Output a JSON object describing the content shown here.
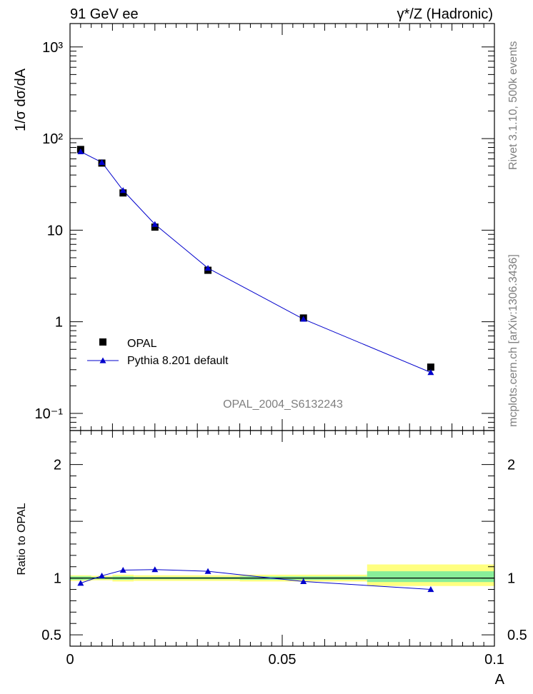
{
  "header": {
    "left": "91 GeV ee",
    "right": "γ*/Z (Hadronic)"
  },
  "side_text": {
    "rivet": "Rivet 3.1.10,  500k events",
    "mcplots": "mcplots.cern.ch [arXiv:1306.3436]"
  },
  "analysis_label": "OPAL_2004_S6132243",
  "colors": {
    "data": "#000000",
    "mc": "#0000cc",
    "band_outer": "#ffff80",
    "band_inner": "#88ee99"
  },
  "chart_data": [
    {
      "type": "scatter",
      "panel": "main",
      "ylabel": "1/σ dσ/dA",
      "xlabel": "A",
      "yscale": "log",
      "xlim": [
        0,
        0.1
      ],
      "ylim": [
        0.065,
        1800
      ],
      "yticks": [
        {
          "value": 1000,
          "label": "10³"
        },
        {
          "value": 100,
          "label": "10²"
        },
        {
          "value": 10,
          "label": "10"
        },
        {
          "value": 1,
          "label": "1"
        },
        {
          "value": 0.1,
          "label": "10⁻¹"
        }
      ],
      "legend_position": "bottom-left",
      "series": [
        {
          "name": "OPAL",
          "marker": "square",
          "x": [
            0.0025,
            0.0075,
            0.0125,
            0.02,
            0.0325,
            0.055,
            0.085
          ],
          "y": [
            76,
            54,
            25.5,
            10.8,
            3.65,
            1.1,
            0.32
          ]
        },
        {
          "name": "Pythia 8.201 default",
          "marker": "triangle",
          "x": [
            0.0025,
            0.0075,
            0.0125,
            0.02,
            0.0325,
            0.055,
            0.085
          ],
          "y": [
            72,
            55,
            27.2,
            11.6,
            3.85,
            1.07,
            0.28
          ]
        }
      ]
    },
    {
      "type": "line",
      "panel": "ratio",
      "ylabel": "Ratio to OPAL",
      "xlabel": "A",
      "xlim": [
        0,
        0.1
      ],
      "ylim": [
        0.4,
        2.3
      ],
      "xticks": [
        {
          "value": 0,
          "label": "0"
        },
        {
          "value": 0.05,
          "label": "0.05"
        },
        {
          "value": 0.1,
          "label": "0.1"
        }
      ],
      "yticks": [
        {
          "value": 2,
          "label": "2"
        },
        {
          "value": 1,
          "label": "1"
        },
        {
          "value": 0.5,
          "label": "0.5"
        }
      ],
      "bands": [
        {
          "x0": 0.0,
          "x1": 0.005,
          "outer": [
            0.975,
            1.025
          ],
          "inner": [
            0.985,
            1.015
          ]
        },
        {
          "x0": 0.005,
          "x1": 0.01,
          "outer": [
            0.98,
            1.02
          ],
          "inner": [
            0.99,
            1.01
          ]
        },
        {
          "x0": 0.01,
          "x1": 0.015,
          "outer": [
            0.97,
            1.03
          ],
          "inner": [
            0.985,
            1.015
          ]
        },
        {
          "x0": 0.015,
          "x1": 0.025,
          "outer": [
            0.975,
            1.025
          ],
          "inner": [
            0.99,
            1.01
          ]
        },
        {
          "x0": 0.025,
          "x1": 0.04,
          "outer": [
            0.975,
            1.025
          ],
          "inner": [
            0.99,
            1.01
          ]
        },
        {
          "x0": 0.04,
          "x1": 0.07,
          "outer": [
            0.97,
            1.03
          ],
          "inner": [
            0.985,
            1.015
          ]
        },
        {
          "x0": 0.07,
          "x1": 0.1,
          "outer": [
            0.93,
            1.12
          ],
          "inner": [
            0.965,
            1.06
          ]
        }
      ],
      "series": [
        {
          "name": "Pythia 8.201 default",
          "x": [
            0.0025,
            0.0075,
            0.0125,
            0.02,
            0.0325,
            0.055,
            0.085
          ],
          "y": [
            0.955,
            1.02,
            1.07,
            1.075,
            1.06,
            0.97,
            0.9
          ]
        }
      ]
    }
  ]
}
